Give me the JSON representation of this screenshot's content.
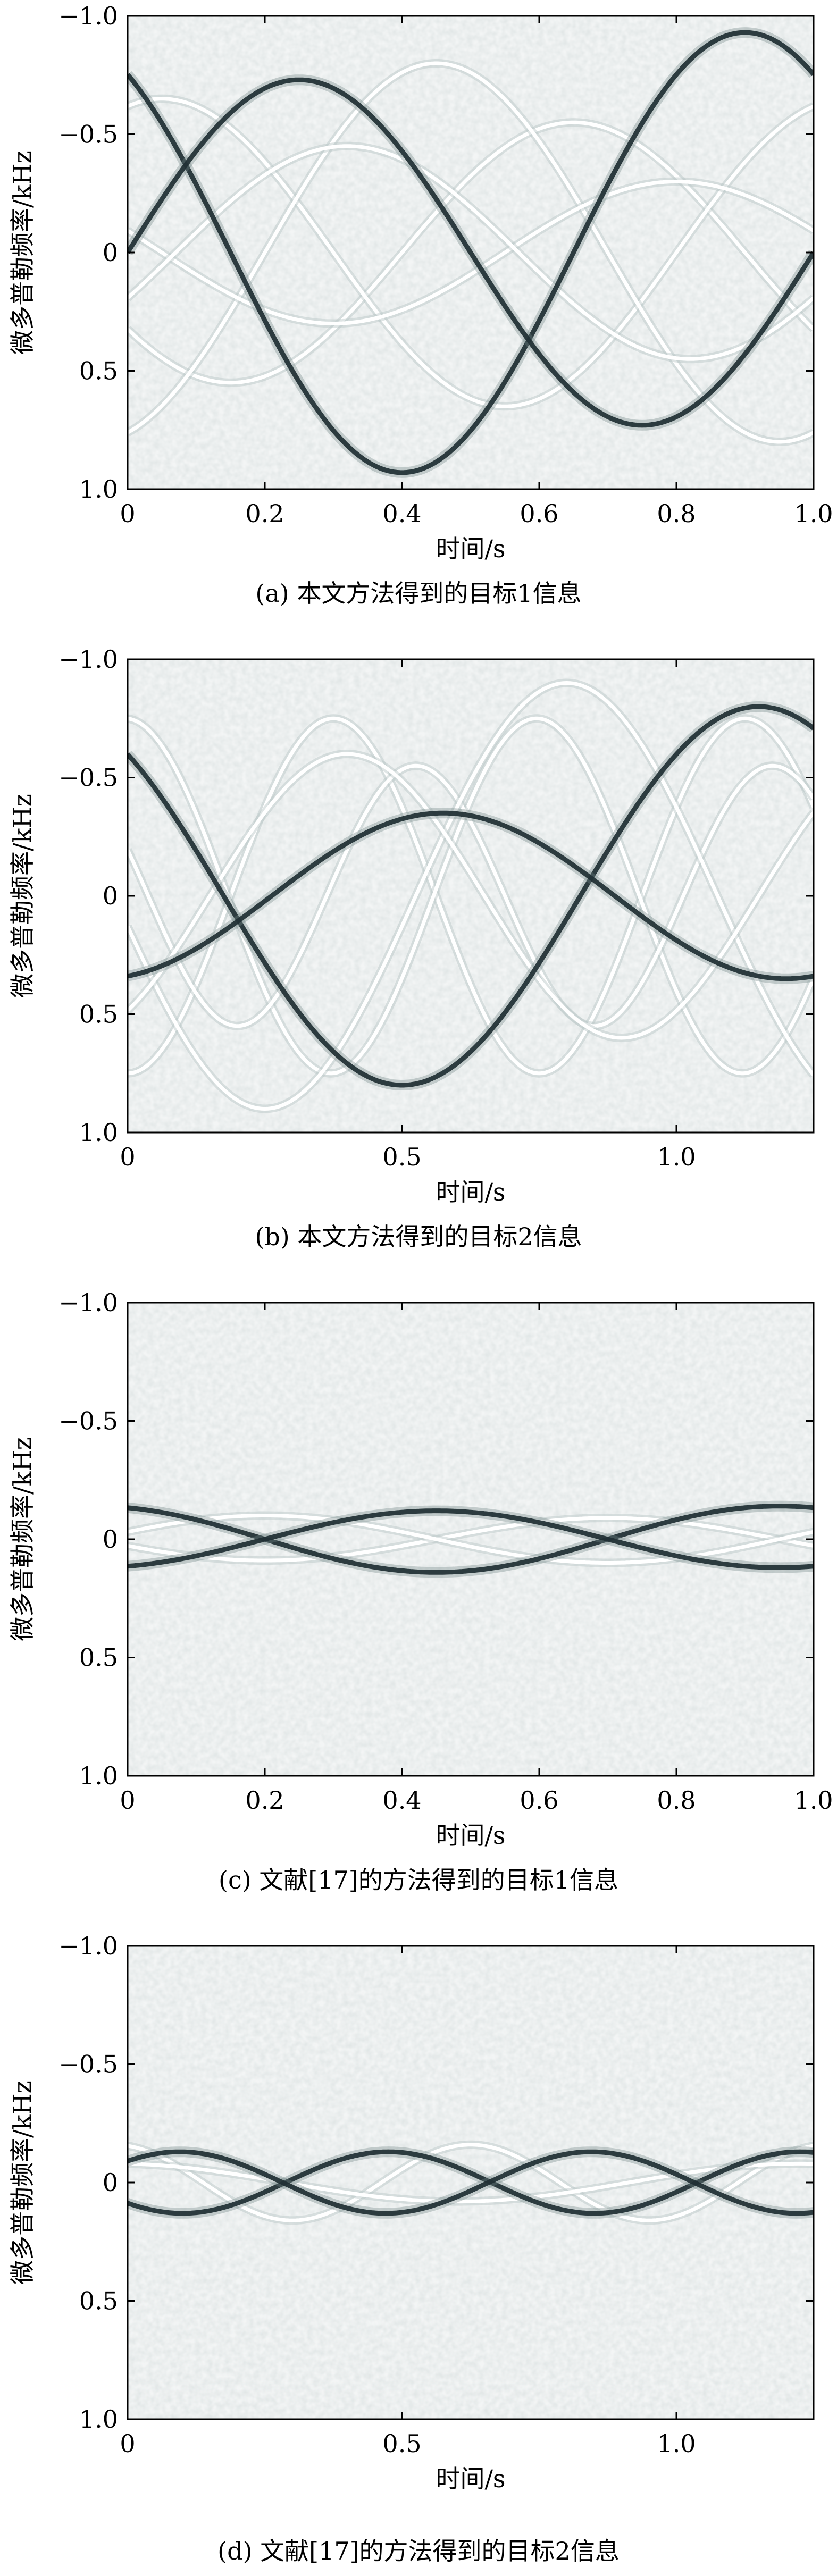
{
  "chart_data": [
    {
      "type": "heatmap",
      "caption": "(a) 本文方法得到的目标1信息",
      "xlabel": "时间/s",
      "ylabel": "微多普勒频率/kHz",
      "xlim": [
        0,
        1.0
      ],
      "ylim": [
        -1.0,
        1.0
      ],
      "y_inverted": true,
      "xticks": [
        "0",
        "0.2",
        "0.4",
        "0.6",
        "0.8",
        "1.0"
      ],
      "xtick_values": [
        0,
        0.2,
        0.4,
        0.6,
        0.8,
        1.0
      ],
      "yticks": [
        "−1.0",
        "−0.5",
        "0",
        "0.5",
        "1.0"
      ],
      "ytick_values": [
        -1.0,
        -0.5,
        0,
        0.5,
        1.0
      ],
      "curves": [
        {
          "style": "dark",
          "amplitude": 0.93,
          "period": 1.0,
          "phase": 0.4,
          "points": [
            [
              0.0,
              0.11
            ],
            [
              0.25,
              -0.71
            ],
            [
              0.4,
              0.93
            ],
            [
              0.6,
              0.36
            ],
            [
              0.9,
              -0.93
            ],
            [
              1.0,
              -0.7
            ]
          ]
        },
        {
          "style": "dark",
          "amplitude": 0.73,
          "period": 1.0,
          "phase": 0.75,
          "points": [
            [
              0.0,
              -0.75
            ],
            [
              0.1,
              -0.3
            ],
            [
              0.25,
              0.73
            ],
            [
              0.45,
              -0.2
            ],
            [
              0.6,
              0.36
            ],
            [
              0.75,
              0.73
            ],
            [
              1.0,
              -0.12
            ]
          ]
        },
        {
          "style": "light",
          "amplitude": 0.55,
          "period": 1.0,
          "phase": 0.15
        },
        {
          "style": "light",
          "amplitude": 0.65,
          "period": 1.0,
          "phase": 0.55
        },
        {
          "style": "light",
          "amplitude": 0.8,
          "period": 1.0,
          "phase": 0.95
        },
        {
          "style": "light",
          "amplitude": 0.3,
          "period": 1.0,
          "phase": 0.3
        },
        {
          "style": "light",
          "amplitude": 0.45,
          "period": 1.0,
          "phase": 0.82
        }
      ]
    },
    {
      "type": "heatmap",
      "caption": "(b) 本文方法得到的目标2信息",
      "xlabel": "时间/s",
      "ylabel": "微多普勒频率/kHz",
      "xlim": [
        0,
        1.25
      ],
      "ylim": [
        -1.0,
        1.0
      ],
      "y_inverted": true,
      "xticks": [
        "0",
        "0.5",
        "1.0"
      ],
      "xtick_values": [
        0,
        0.5,
        1.0
      ],
      "yticks": [
        "−1.0",
        "−0.5",
        "0",
        "0.5",
        "1.0"
      ],
      "ytick_values": [
        -1.0,
        -0.5,
        0,
        0.5,
        1.0
      ],
      "curves": [
        {
          "style": "dark",
          "amplitude": 0.8,
          "period": 1.3,
          "phase": 0.5,
          "points": [
            [
              0.0,
              -0.65
            ],
            [
              0.2,
              0.05
            ],
            [
              0.5,
              0.8
            ],
            [
              0.8,
              0.0
            ],
            [
              1.15,
              -0.8
            ],
            [
              1.25,
              -0.72
            ]
          ]
        },
        {
          "style": "dark",
          "amplitude": 0.35,
          "period": 1.25,
          "phase": 1.2,
          "points": [
            [
              0.0,
              0.32
            ],
            [
              0.2,
              0.1
            ],
            [
              0.55,
              -0.35
            ],
            [
              0.8,
              0.0
            ],
            [
              1.25,
              0.34
            ]
          ]
        },
        {
          "style": "light",
          "amplitude": 0.75,
          "period": 0.75,
          "phase": 0.0
        },
        {
          "style": "light",
          "amplitude": 0.75,
          "period": 0.75,
          "phase": 0.37
        },
        {
          "style": "light",
          "amplitude": 0.55,
          "period": 0.65,
          "phase": 0.2
        },
        {
          "style": "light",
          "amplitude": 0.9,
          "period": 1.1,
          "phase": 0.25
        },
        {
          "style": "light",
          "amplitude": 0.6,
          "period": 1.0,
          "phase": 0.9
        }
      ]
    },
    {
      "type": "heatmap",
      "caption": "(c) 文献[17]的方法得到的目标1信息",
      "xlabel": "时间/s",
      "ylabel": "微多普勒频率/kHz",
      "xlim": [
        0,
        1.0
      ],
      "ylim": [
        -1.0,
        1.0
      ],
      "y_inverted": true,
      "xticks": [
        "0",
        "0.2",
        "0.4",
        "0.6",
        "0.8",
        "1.0"
      ],
      "xtick_values": [
        0,
        0.2,
        0.4,
        0.6,
        0.8,
        1.0
      ],
      "yticks": [
        "−1.0",
        "−0.5",
        "0",
        "0.5",
        "1.0"
      ],
      "ytick_values": [
        -1.0,
        -0.5,
        0,
        0.5,
        1.0
      ],
      "curves": [
        {
          "style": "dark",
          "amplitude": 0.14,
          "period": 1.0,
          "phase": 0.45
        },
        {
          "style": "dark",
          "amplitude": 0.12,
          "period": 1.0,
          "phase": 0.95
        },
        {
          "style": "light",
          "amplitude": 0.09,
          "period": 1.0,
          "phase": 0.2
        },
        {
          "style": "light",
          "amplitude": 0.1,
          "period": 1.0,
          "phase": 0.7
        }
      ]
    },
    {
      "type": "heatmap",
      "caption": "(d) 文献[17]的方法得到的目标2信息",
      "xlabel": "时间/s",
      "ylabel": "微多普勒频率/kHz",
      "xlim": [
        0,
        1.25
      ],
      "ylim": [
        -1.0,
        1.0
      ],
      "y_inverted": true,
      "xticks": [
        "0",
        "0.5",
        "1.0"
      ],
      "xtick_values": [
        0,
        0.5,
        1.0
      ],
      "yticks": [
        "−1.0",
        "−0.5",
        "0",
        "0.5",
        "1.0"
      ],
      "ytick_values": [
        -1.0,
        -0.5,
        0,
        0.5,
        1.0
      ],
      "curves": [
        {
          "style": "dark",
          "amplitude": 0.13,
          "period": 0.75,
          "phase": 0.1
        },
        {
          "style": "dark",
          "amplitude": 0.13,
          "period": 0.75,
          "phase": 0.47
        },
        {
          "style": "light",
          "amplitude": 0.16,
          "period": 0.65,
          "phase": 0.3
        },
        {
          "style": "light",
          "amplitude": 0.08,
          "period": 1.25,
          "phase": 0.6
        }
      ]
    }
  ]
}
